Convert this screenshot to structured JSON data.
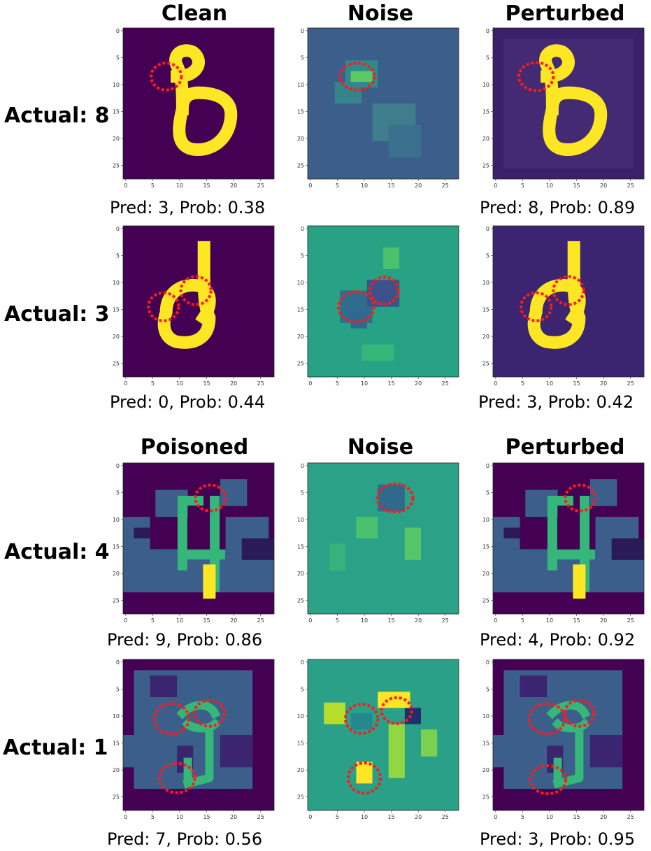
{
  "headers": {
    "clean": "Clean",
    "noise_top": "Noise",
    "perturbed_top": "Perturbed",
    "poisoned": "Poisoned",
    "noise_bottom": "Noise",
    "perturbed_bottom": "Perturbed"
  },
  "rows": [
    {
      "label": "Actual: 8",
      "left_caption": "Pred: 3, Prob: 0.38",
      "right_caption": "Pred: 8, Prob: 0.89"
    },
    {
      "label": "Actual: 3",
      "left_caption": "Pred: 0, Prob: 0.44",
      "right_caption": "Pred: 3, Prob: 0.42"
    },
    {
      "label": "Actual: 4",
      "left_caption": "Pred: 9, Prob: 0.86",
      "right_caption": "Pred: 4, Prob: 0.92"
    },
    {
      "label": "Actual: 1",
      "left_caption": "Pred: 7, Prob: 0.56",
      "right_caption": "Pred: 3, Prob: 0.95"
    }
  ],
  "axis_ticks": [
    "0",
    "5",
    "10",
    "15",
    "20",
    "25"
  ],
  "colors": {
    "dark_bg": "#440154",
    "teal_bg": "#3b5f8a",
    "yellow": "#fde725",
    "green": "#5ec962",
    "noise_mid": "#2a9d8f",
    "marker": "#ff1a1a"
  }
}
